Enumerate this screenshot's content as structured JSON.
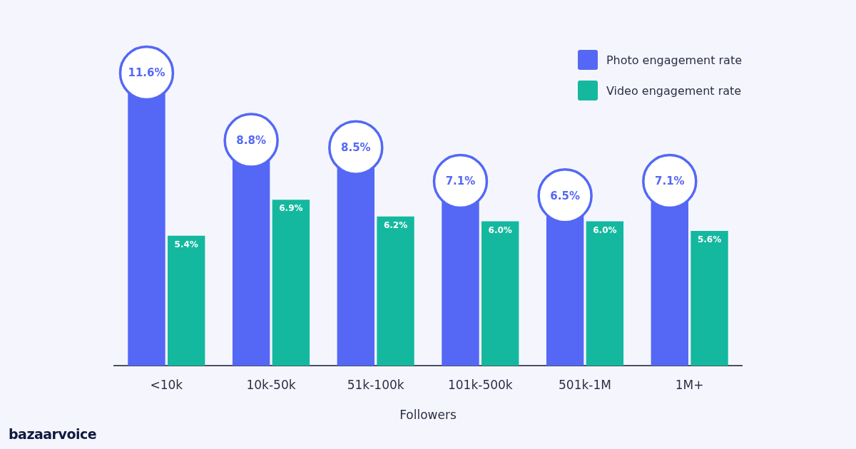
{
  "chart_data": {
    "type": "bar",
    "xlabel": "Followers",
    "categories": [
      "<10k",
      "10k-50k",
      "51k-100k",
      "101k-500k",
      "501k-1M",
      "1M+"
    ],
    "series": [
      {
        "name": "Photo engagement rate",
        "color": "#5468f5",
        "values": [
          11.6,
          8.8,
          8.5,
          7.1,
          6.5,
          7.1
        ],
        "value_labels": [
          "11.6%",
          "8.8%",
          "8.5%",
          "7.1%",
          "6.5%",
          "7.1%"
        ]
      },
      {
        "name": "Video engagement rate",
        "color": "#14b89f",
        "values": [
          5.4,
          6.9,
          6.2,
          6.0,
          6.0,
          5.6
        ],
        "value_labels": [
          "5.4%",
          "6.9%",
          "6.2%",
          "6.0%",
          "6.0%",
          "5.6%"
        ]
      }
    ],
    "ylim": [
      0,
      12
    ],
    "yticks": [
      0,
      2,
      4,
      6,
      8,
      10,
      12
    ],
    "grid": false,
    "legend": "upper right",
    "data_labels": true,
    "tick_labels": "x",
    "annotations": [
      "bazaarvoice"
    ]
  }
}
